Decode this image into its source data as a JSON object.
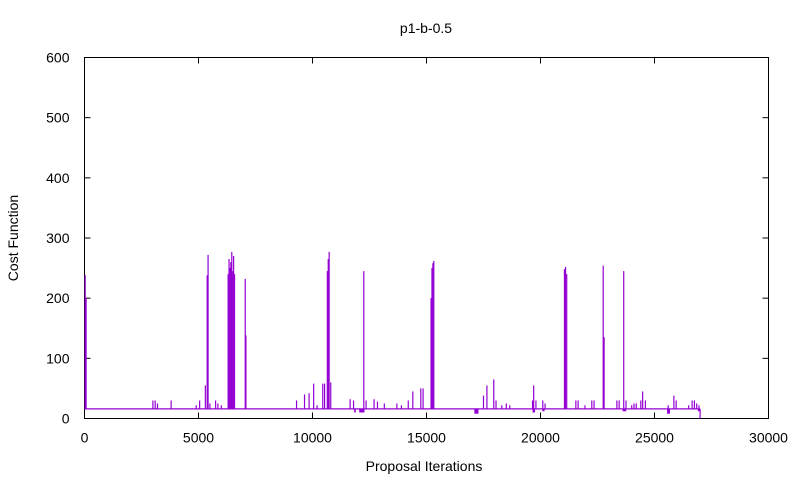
{
  "chart_data": {
    "type": "line",
    "title": "p1-b-0.5",
    "xlabel": "Proposal Iterations",
    "ylabel": "Cost Function",
    "xlim": [
      0,
      30000
    ],
    "ylim": [
      0,
      600
    ],
    "xticks": [
      0,
      5000,
      10000,
      15000,
      20000,
      25000,
      30000
    ],
    "yticks": [
      0,
      100,
      200,
      300,
      400,
      500,
      600
    ],
    "xtick_labels": [
      "0",
      "5000",
      "10000",
      "15000",
      "20000",
      "25000",
      "30000"
    ],
    "ytick_labels": [
      "0",
      "100",
      "200",
      "300",
      "400",
      "500",
      "600"
    ],
    "grid": false,
    "legend": "none",
    "series": [
      {
        "color": "#9400d3",
        "baseline": 16,
        "x_end": 27000,
        "spikes": [
          {
            "x": 30,
            "y": 238
          },
          {
            "x": 70,
            "y": 200
          },
          {
            "x": 3000,
            "y": 30
          },
          {
            "x": 3100,
            "y": 30
          },
          {
            "x": 3200,
            "y": 25
          },
          {
            "x": 3800,
            "y": 30
          },
          {
            "x": 4900,
            "y": 22
          },
          {
            "x": 5050,
            "y": 30
          },
          {
            "x": 5300,
            "y": 55
          },
          {
            "x": 5380,
            "y": 238
          },
          {
            "x": 5420,
            "y": 272
          },
          {
            "x": 5500,
            "y": 25
          },
          {
            "x": 5750,
            "y": 30
          },
          {
            "x": 5850,
            "y": 25
          },
          {
            "x": 6000,
            "y": 22
          },
          {
            "x": 6300,
            "y": 240
          },
          {
            "x": 6340,
            "y": 265
          },
          {
            "x": 6380,
            "y": 250
          },
          {
            "x": 6420,
            "y": 260
          },
          {
            "x": 6460,
            "y": 277
          },
          {
            "x": 6500,
            "y": 245
          },
          {
            "x": 6540,
            "y": 270
          },
          {
            "x": 6580,
            "y": 240
          },
          {
            "x": 7050,
            "y": 232
          },
          {
            "x": 7080,
            "y": 138
          },
          {
            "x": 9300,
            "y": 30
          },
          {
            "x": 9650,
            "y": 40
          },
          {
            "x": 9850,
            "y": 42
          },
          {
            "x": 10050,
            "y": 58
          },
          {
            "x": 10200,
            "y": 22
          },
          {
            "x": 10450,
            "y": 58
          },
          {
            "x": 10530,
            "y": 58
          },
          {
            "x": 10650,
            "y": 245
          },
          {
            "x": 10690,
            "y": 265
          },
          {
            "x": 10730,
            "y": 277
          },
          {
            "x": 10800,
            "y": 60
          },
          {
            "x": 11650,
            "y": 32
          },
          {
            "x": 11800,
            "y": 30
          },
          {
            "x": 12250,
            "y": 245
          },
          {
            "x": 12350,
            "y": 30
          },
          {
            "x": 12700,
            "y": 32
          },
          {
            "x": 12850,
            "y": 28
          },
          {
            "x": 13150,
            "y": 25
          },
          {
            "x": 13700,
            "y": 25
          },
          {
            "x": 13900,
            "y": 22
          },
          {
            "x": 14200,
            "y": 30
          },
          {
            "x": 14400,
            "y": 45
          },
          {
            "x": 14750,
            "y": 50
          },
          {
            "x": 14850,
            "y": 50
          },
          {
            "x": 15200,
            "y": 200
          },
          {
            "x": 15240,
            "y": 250
          },
          {
            "x": 15280,
            "y": 258
          },
          {
            "x": 15320,
            "y": 262
          },
          {
            "x": 17500,
            "y": 38
          },
          {
            "x": 17650,
            "y": 55
          },
          {
            "x": 17950,
            "y": 65
          },
          {
            "x": 18050,
            "y": 30
          },
          {
            "x": 18300,
            "y": 22
          },
          {
            "x": 18500,
            "y": 25
          },
          {
            "x": 18650,
            "y": 22
          },
          {
            "x": 19650,
            "y": 30
          },
          {
            "x": 19700,
            "y": 55
          },
          {
            "x": 19800,
            "y": 30
          },
          {
            "x": 20100,
            "y": 30
          },
          {
            "x": 20200,
            "y": 25
          },
          {
            "x": 21050,
            "y": 248
          },
          {
            "x": 21100,
            "y": 252
          },
          {
            "x": 21150,
            "y": 240
          },
          {
            "x": 21550,
            "y": 30
          },
          {
            "x": 21650,
            "y": 30
          },
          {
            "x": 21950,
            "y": 22
          },
          {
            "x": 22250,
            "y": 30
          },
          {
            "x": 22350,
            "y": 30
          },
          {
            "x": 22750,
            "y": 254
          },
          {
            "x": 22790,
            "y": 135
          },
          {
            "x": 23350,
            "y": 30
          },
          {
            "x": 23450,
            "y": 30
          },
          {
            "x": 23650,
            "y": 245
          },
          {
            "x": 23750,
            "y": 30
          },
          {
            "x": 24000,
            "y": 22
          },
          {
            "x": 24100,
            "y": 25
          },
          {
            "x": 24200,
            "y": 25
          },
          {
            "x": 24400,
            "y": 30
          },
          {
            "x": 24480,
            "y": 45
          },
          {
            "x": 24600,
            "y": 30
          },
          {
            "x": 25600,
            "y": 22
          },
          {
            "x": 25850,
            "y": 38
          },
          {
            "x": 25950,
            "y": 30
          },
          {
            "x": 26500,
            "y": 22
          },
          {
            "x": 26650,
            "y": 30
          },
          {
            "x": 26750,
            "y": 30
          },
          {
            "x": 26850,
            "y": 25
          },
          {
            "x": 26950,
            "y": 22
          }
        ],
        "dips": [
          {
            "x0": 11830,
            "x1": 11900,
            "y": 10
          },
          {
            "x0": 12050,
            "x1": 12280,
            "y": 10
          },
          {
            "x0": 17100,
            "x1": 17280,
            "y": 8
          },
          {
            "x0": 19650,
            "x1": 19760,
            "y": 10
          },
          {
            "x0": 20080,
            "x1": 20180,
            "y": 12
          },
          {
            "x0": 23600,
            "x1": 23760,
            "y": 12
          },
          {
            "x0": 25550,
            "x1": 25680,
            "y": 8
          },
          {
            "x0": 26900,
            "x1": 26990,
            "y": 12
          }
        ]
      }
    ]
  }
}
